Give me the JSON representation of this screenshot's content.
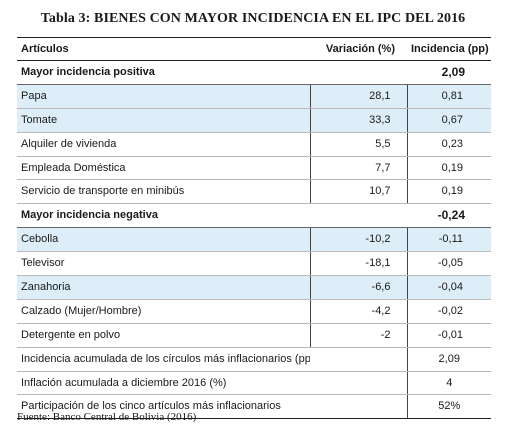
{
  "title": "Tabla 3: BIENES CON MAYOR INCIDENCIA EN EL IPC DEL 2016",
  "columns": [
    "Artículos",
    "Variación (%)",
    "Incidencia (pp)"
  ],
  "rows": [
    {
      "label": "Mayor incidencia positiva",
      "var": "",
      "inc": "2,09"
    },
    {
      "label": "Papa",
      "var": "28,1",
      "inc": "0,81"
    },
    {
      "label": "Tomate",
      "var": "33,3",
      "inc": "0,67"
    },
    {
      "label": "Alquiler de vivienda",
      "var": "5,5",
      "inc": "0,23"
    },
    {
      "label": "Empleada Doméstica",
      "var": "7,7",
      "inc": "0,19"
    },
    {
      "label": "Servicio de transporte en minibús",
      "var": "10,7",
      "inc": "0,19"
    },
    {
      "label": "Mayor incidencia negativa",
      "var": "",
      "inc": "-0,24"
    },
    {
      "label": "Cebolla",
      "var": "-10,2",
      "inc": "-0,11"
    },
    {
      "label": "Televisor",
      "var": "-18,1",
      "inc": "-0,05"
    },
    {
      "label": "Zanahoria",
      "var": "-6,6",
      "inc": "-0,04"
    },
    {
      "label": "Calzado (Mujer/Hombre)",
      "var": "-4,2",
      "inc": "-0,02"
    },
    {
      "label": "Detergente en polvo",
      "var": "-2",
      "inc": "-0,01"
    },
    {
      "label": "Incidencia acumulada de los círculos más inflacionarios (pp)",
      "var": "",
      "inc": "2,09"
    },
    {
      "label": "Inflación acumulada a diciembre 2016 (%)",
      "var": "",
      "inc": "4"
    },
    {
      "label": "Participación de los cinco artículos más inflacionarios",
      "var": "",
      "inc": "52%"
    }
  ],
  "source": "Fuente: Banco Central de Bolivia (2016)",
  "colors": {
    "shade": "#deeef9",
    "rule": "#222222"
  }
}
